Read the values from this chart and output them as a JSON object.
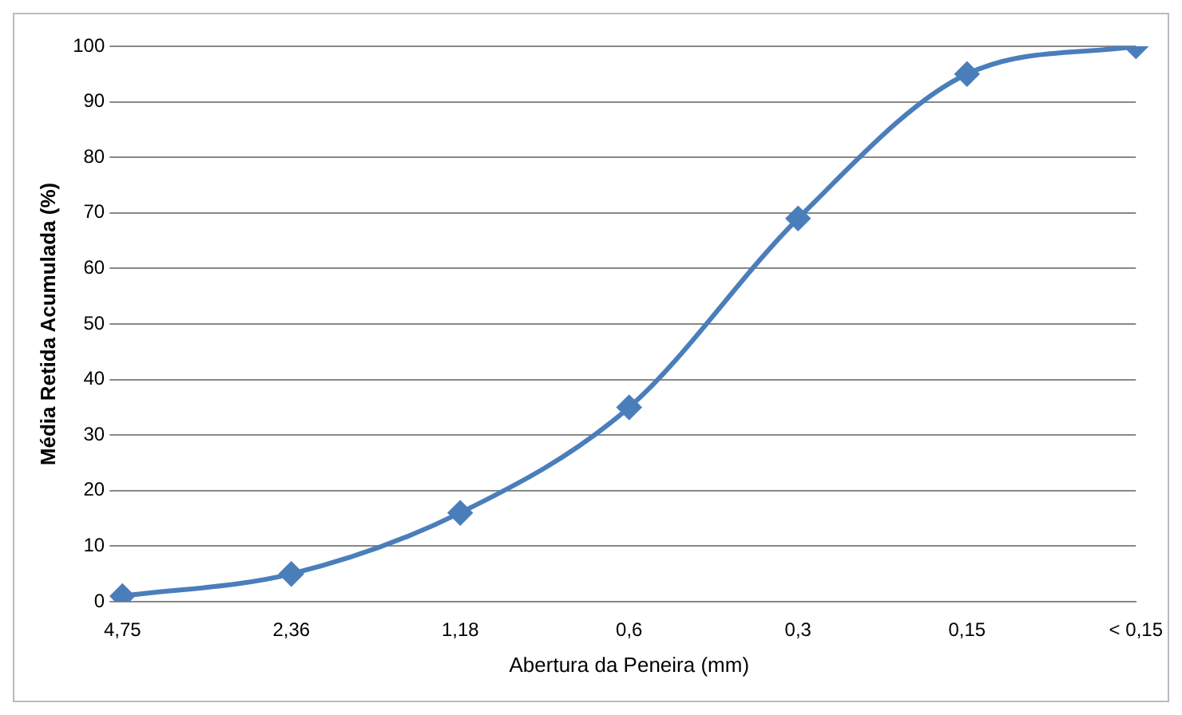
{
  "chart_data": {
    "type": "line",
    "xlabel": "Abertura da Peneira (mm)",
    "ylabel": "Média Retida Acumulada (%)",
    "categories": [
      "4,75",
      "2,36",
      "1,18",
      "0,6",
      "0,3",
      "0,15",
      "< 0,15"
    ],
    "series": [
      {
        "color": "#4a7ebb",
        "values": [
          1,
          5,
          16,
          35,
          69,
          95,
          100
        ]
      }
    ],
    "ylim": [
      0,
      100
    ],
    "yticks": [
      0,
      10,
      20,
      30,
      40,
      50,
      60,
      70,
      80,
      90,
      100
    ],
    "grid": "y",
    "legend": false,
    "marker": "diamond",
    "line_style": "solid"
  }
}
